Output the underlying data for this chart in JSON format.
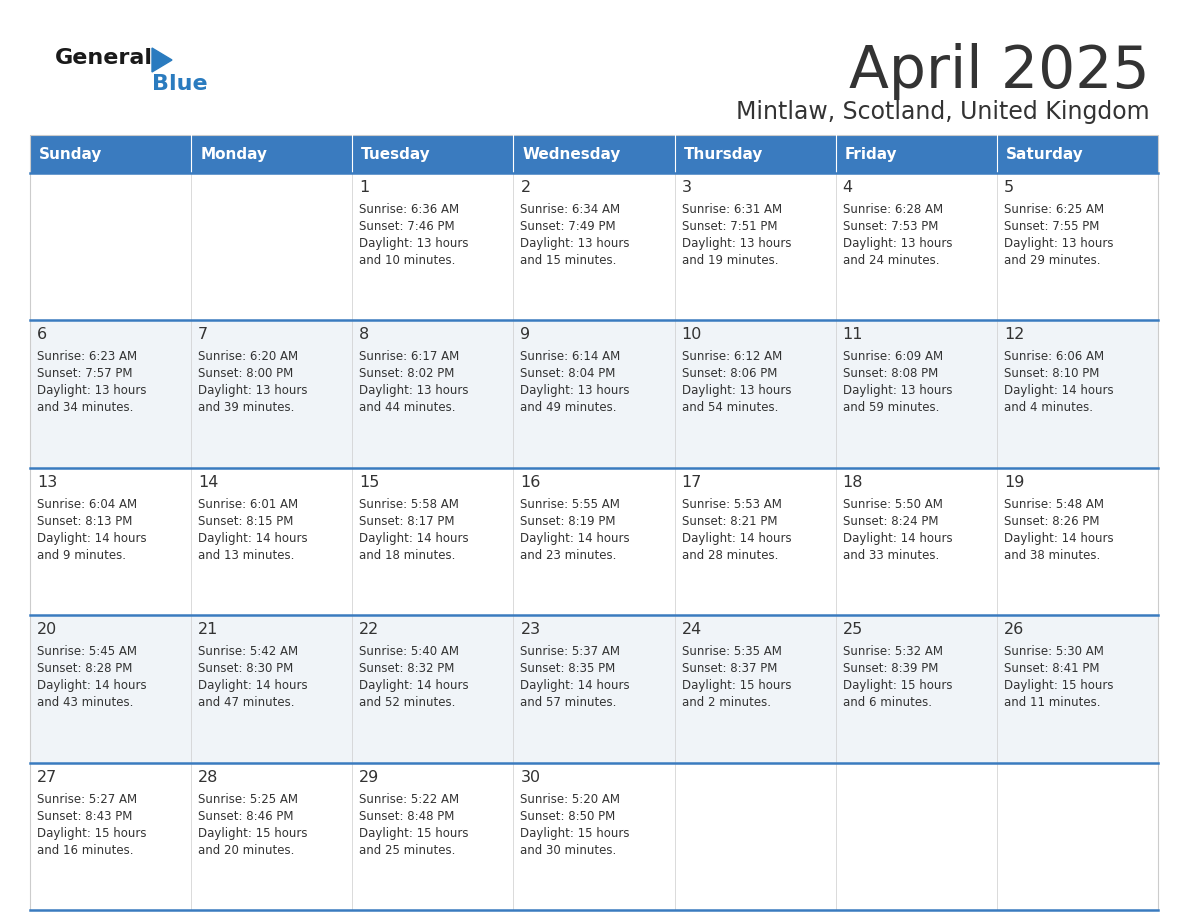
{
  "title": "April 2025",
  "subtitle": "Mintlaw, Scotland, United Kingdom",
  "header_color": "#3a7bbf",
  "header_text_color": "#ffffff",
  "cell_bg_even": "#f0f4f8",
  "cell_bg_odd": "#ffffff",
  "border_color": "#3a7bbf",
  "cell_border_color": "#cccccc",
  "text_color": "#333333",
  "days_of_week": [
    "Sunday",
    "Monday",
    "Tuesday",
    "Wednesday",
    "Thursday",
    "Friday",
    "Saturday"
  ],
  "logo_general_color": "#1a1a1a",
  "logo_blue_color": "#2a7bbf",
  "calendar": [
    [
      {
        "day": "",
        "sunrise": "",
        "sunset": "",
        "daylight": ""
      },
      {
        "day": "",
        "sunrise": "",
        "sunset": "",
        "daylight": ""
      },
      {
        "day": "1",
        "sunrise": "6:36 AM",
        "sunset": "7:46 PM",
        "daylight": "13 hours\nand 10 minutes."
      },
      {
        "day": "2",
        "sunrise": "6:34 AM",
        "sunset": "7:49 PM",
        "daylight": "13 hours\nand 15 minutes."
      },
      {
        "day": "3",
        "sunrise": "6:31 AM",
        "sunset": "7:51 PM",
        "daylight": "13 hours\nand 19 minutes."
      },
      {
        "day": "4",
        "sunrise": "6:28 AM",
        "sunset": "7:53 PM",
        "daylight": "13 hours\nand 24 minutes."
      },
      {
        "day": "5",
        "sunrise": "6:25 AM",
        "sunset": "7:55 PM",
        "daylight": "13 hours\nand 29 minutes."
      }
    ],
    [
      {
        "day": "6",
        "sunrise": "6:23 AM",
        "sunset": "7:57 PM",
        "daylight": "13 hours\nand 34 minutes."
      },
      {
        "day": "7",
        "sunrise": "6:20 AM",
        "sunset": "8:00 PM",
        "daylight": "13 hours\nand 39 minutes."
      },
      {
        "day": "8",
        "sunrise": "6:17 AM",
        "sunset": "8:02 PM",
        "daylight": "13 hours\nand 44 minutes."
      },
      {
        "day": "9",
        "sunrise": "6:14 AM",
        "sunset": "8:04 PM",
        "daylight": "13 hours\nand 49 minutes."
      },
      {
        "day": "10",
        "sunrise": "6:12 AM",
        "sunset": "8:06 PM",
        "daylight": "13 hours\nand 54 minutes."
      },
      {
        "day": "11",
        "sunrise": "6:09 AM",
        "sunset": "8:08 PM",
        "daylight": "13 hours\nand 59 minutes."
      },
      {
        "day": "12",
        "sunrise": "6:06 AM",
        "sunset": "8:10 PM",
        "daylight": "14 hours\nand 4 minutes."
      }
    ],
    [
      {
        "day": "13",
        "sunrise": "6:04 AM",
        "sunset": "8:13 PM",
        "daylight": "14 hours\nand 9 minutes."
      },
      {
        "day": "14",
        "sunrise": "6:01 AM",
        "sunset": "8:15 PM",
        "daylight": "14 hours\nand 13 minutes."
      },
      {
        "day": "15",
        "sunrise": "5:58 AM",
        "sunset": "8:17 PM",
        "daylight": "14 hours\nand 18 minutes."
      },
      {
        "day": "16",
        "sunrise": "5:55 AM",
        "sunset": "8:19 PM",
        "daylight": "14 hours\nand 23 minutes."
      },
      {
        "day": "17",
        "sunrise": "5:53 AM",
        "sunset": "8:21 PM",
        "daylight": "14 hours\nand 28 minutes."
      },
      {
        "day": "18",
        "sunrise": "5:50 AM",
        "sunset": "8:24 PM",
        "daylight": "14 hours\nand 33 minutes."
      },
      {
        "day": "19",
        "sunrise": "5:48 AM",
        "sunset": "8:26 PM",
        "daylight": "14 hours\nand 38 minutes."
      }
    ],
    [
      {
        "day": "20",
        "sunrise": "5:45 AM",
        "sunset": "8:28 PM",
        "daylight": "14 hours\nand 43 minutes."
      },
      {
        "day": "21",
        "sunrise": "5:42 AM",
        "sunset": "8:30 PM",
        "daylight": "14 hours\nand 47 minutes."
      },
      {
        "day": "22",
        "sunrise": "5:40 AM",
        "sunset": "8:32 PM",
        "daylight": "14 hours\nand 52 minutes."
      },
      {
        "day": "23",
        "sunrise": "5:37 AM",
        "sunset": "8:35 PM",
        "daylight": "14 hours\nand 57 minutes."
      },
      {
        "day": "24",
        "sunrise": "5:35 AM",
        "sunset": "8:37 PM",
        "daylight": "15 hours\nand 2 minutes."
      },
      {
        "day": "25",
        "sunrise": "5:32 AM",
        "sunset": "8:39 PM",
        "daylight": "15 hours\nand 6 minutes."
      },
      {
        "day": "26",
        "sunrise": "5:30 AM",
        "sunset": "8:41 PM",
        "daylight": "15 hours\nand 11 minutes."
      }
    ],
    [
      {
        "day": "27",
        "sunrise": "5:27 AM",
        "sunset": "8:43 PM",
        "daylight": "15 hours\nand 16 minutes."
      },
      {
        "day": "28",
        "sunrise": "5:25 AM",
        "sunset": "8:46 PM",
        "daylight": "15 hours\nand 20 minutes."
      },
      {
        "day": "29",
        "sunrise": "5:22 AM",
        "sunset": "8:48 PM",
        "daylight": "15 hours\nand 25 minutes."
      },
      {
        "day": "30",
        "sunrise": "5:20 AM",
        "sunset": "8:50 PM",
        "daylight": "15 hours\nand 30 minutes."
      },
      {
        "day": "",
        "sunrise": "",
        "sunset": "",
        "daylight": ""
      },
      {
        "day": "",
        "sunrise": "",
        "sunset": "",
        "daylight": ""
      },
      {
        "day": "",
        "sunrise": "",
        "sunset": "",
        "daylight": ""
      }
    ]
  ]
}
